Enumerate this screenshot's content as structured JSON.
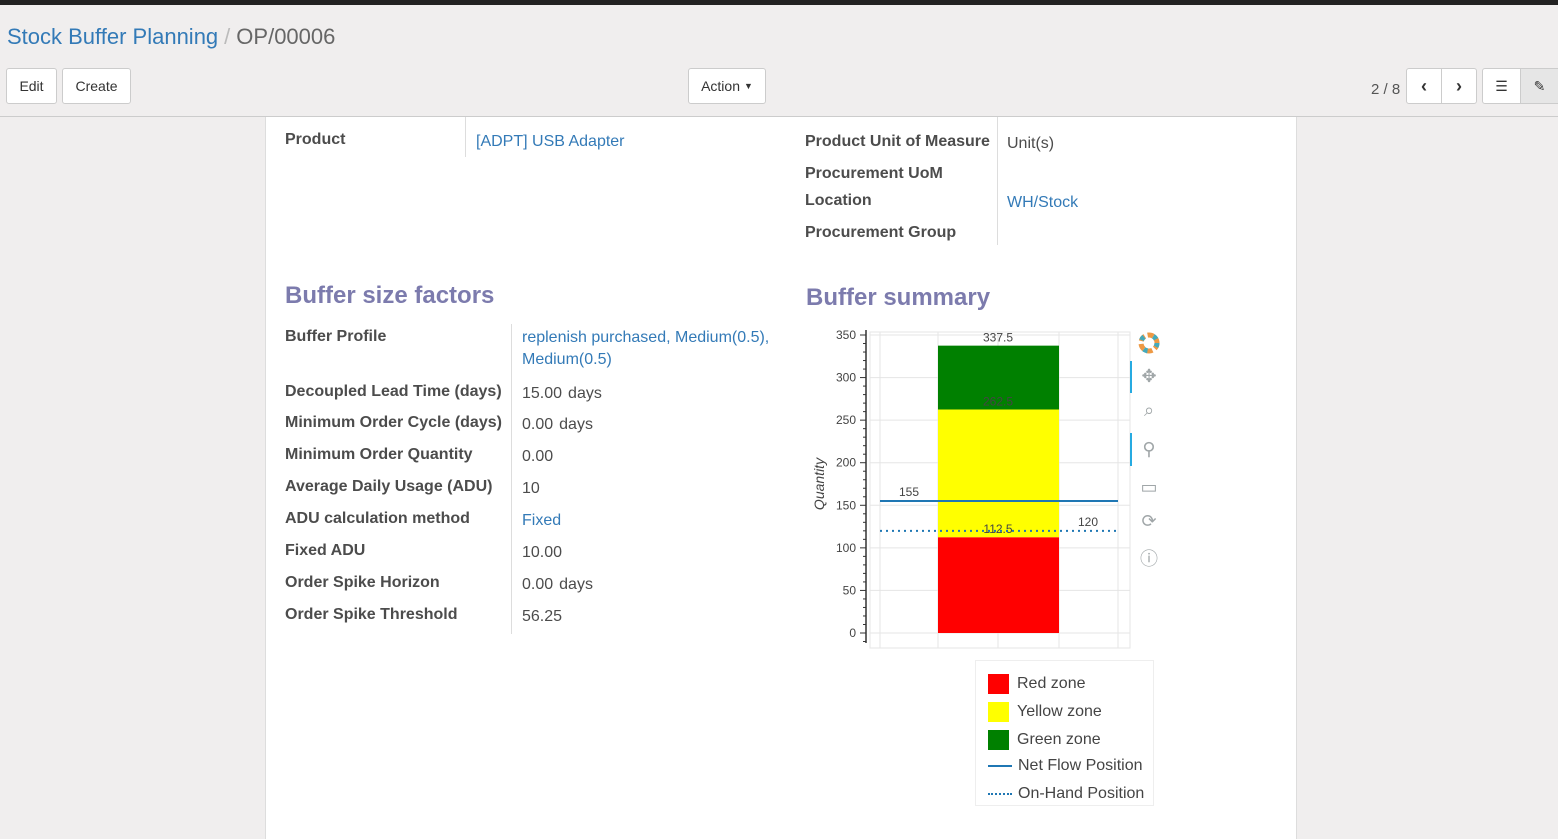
{
  "breadcrumb": {
    "parent": "Stock Buffer Planning",
    "current": "OP/00006"
  },
  "toolbar": {
    "edit": "Edit",
    "create": "Create",
    "action": "Action",
    "pager": "2 / 8"
  },
  "top_fields": {
    "product_label": "Product",
    "product_value": "[ADPT] USB Adapter",
    "uom_label": "Product Unit of Measure",
    "uom_value": "Unit(s)",
    "proc_uom_label": "Procurement UoM",
    "location_label": "Location",
    "location_value": "WH/Stock",
    "proc_group_label": "Procurement Group"
  },
  "factors": {
    "title": "Buffer size factors",
    "rows": [
      {
        "label": "Buffer Profile",
        "value": "replenish purchased, Medium(0.5), Medium(0.5)",
        "link": true
      },
      {
        "label": "Decoupled Lead Time (days)",
        "value": "15.00",
        "unit": "days"
      },
      {
        "label": "Minimum Order Cycle (days)",
        "value": "0.00",
        "unit": "days"
      },
      {
        "label": "Minimum Order Quantity",
        "value": "0.00"
      },
      {
        "label": "Average Daily Usage (ADU)",
        "value": "10"
      },
      {
        "label": "ADU calculation method",
        "value": "Fixed",
        "link": true
      },
      {
        "label": "Fixed ADU",
        "value": "10.00"
      },
      {
        "label": "Order Spike Horizon",
        "value": "0.00",
        "unit": "days"
      },
      {
        "label": "Order Spike Threshold",
        "value": "56.25"
      }
    ]
  },
  "summary": {
    "title": "Buffer summary"
  },
  "chart_data": {
    "type": "bar",
    "stacked": true,
    "ylabel": "Quantity",
    "ylim": [
      0,
      350
    ],
    "yticks": [
      0,
      50,
      100,
      150,
      200,
      250,
      300,
      350
    ],
    "grid": true,
    "zones": [
      {
        "name": "Red zone",
        "from": 0,
        "to": 112.5,
        "color": "#ff0000"
      },
      {
        "name": "Yellow zone",
        "from": 112.5,
        "to": 262.5,
        "color": "#ffff00"
      },
      {
        "name": "Green zone",
        "from": 262.5,
        "to": 337.5,
        "color": "#008000"
      }
    ],
    "bar_labels": [
      "112.5",
      "262.5",
      "337.5"
    ],
    "lines": [
      {
        "name": "Net Flow Position",
        "value": 155,
        "label": "155",
        "style": "solid",
        "color": "#1f77b4"
      },
      {
        "name": "On-Hand Position",
        "value": 120,
        "label": "120",
        "style": "dotted",
        "color": "#1f77b4"
      }
    ],
    "legend_position": "bottom-right"
  }
}
